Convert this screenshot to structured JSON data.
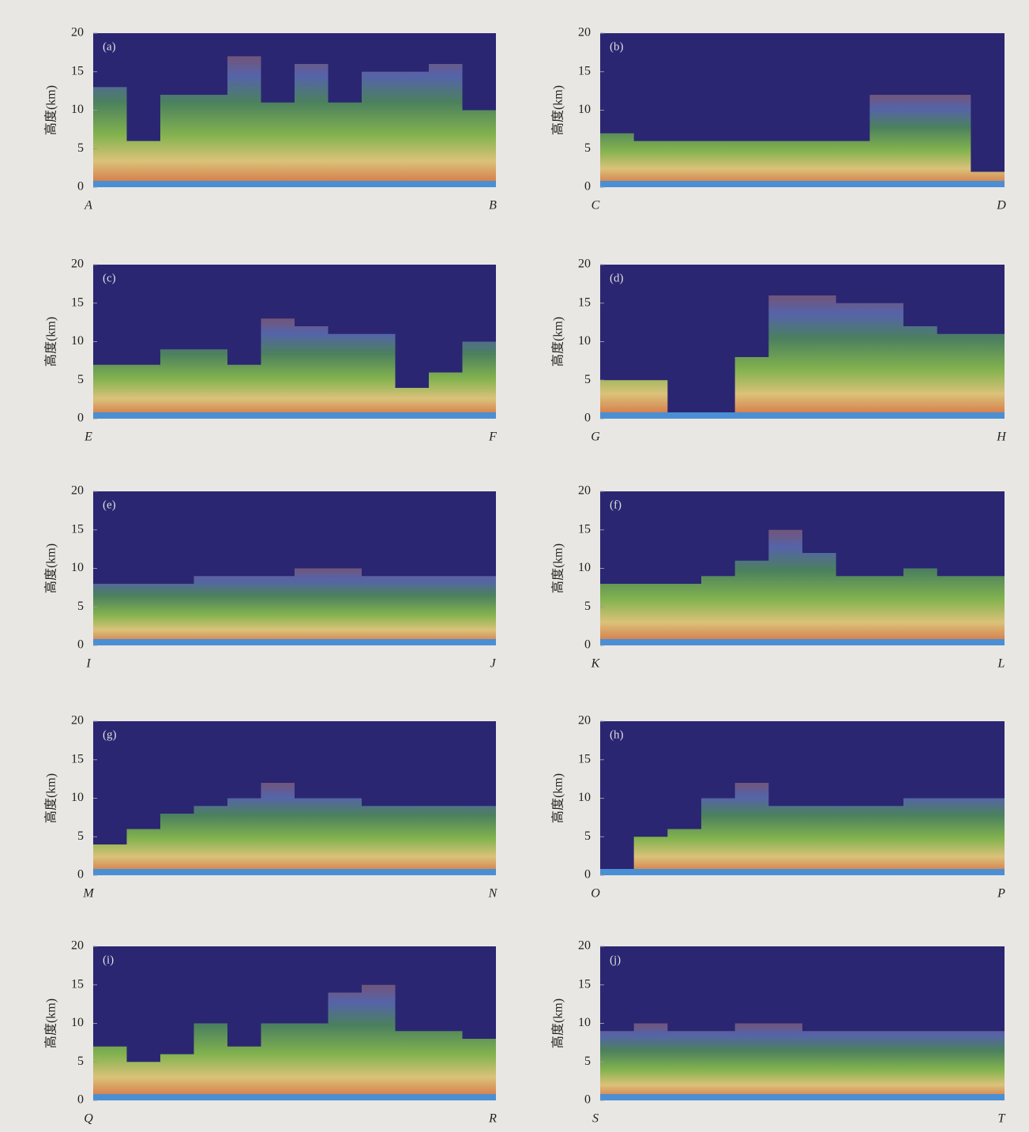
{
  "chart_data": [
    {
      "type": "area",
      "title": "(a)",
      "ylabel": "高度(km)",
      "x_labels": [
        "A",
        "B"
      ],
      "ylim": [
        0,
        20
      ],
      "yticks": [
        0,
        5,
        10,
        15,
        20
      ],
      "values": [
        13,
        6,
        12,
        12,
        17,
        11,
        16,
        11,
        15,
        15,
        16,
        10
      ]
    },
    {
      "type": "area",
      "title": "(b)",
      "ylabel": "高度(km)",
      "x_labels": [
        "C",
        "D"
      ],
      "ylim": [
        0,
        20
      ],
      "yticks": [
        0,
        5,
        10,
        15,
        20
      ],
      "values": [
        7,
        6,
        6,
        6,
        6,
        6,
        6,
        6,
        12,
        12,
        12,
        2
      ]
    },
    {
      "type": "area",
      "title": "(c)",
      "ylabel": "高度(km)",
      "x_labels": [
        "E",
        "F"
      ],
      "ylim": [
        0,
        20
      ],
      "yticks": [
        0,
        5,
        10,
        15,
        20
      ],
      "values": [
        7,
        7,
        9,
        9,
        7,
        13,
        12,
        11,
        11,
        4,
        6,
        10
      ]
    },
    {
      "type": "area",
      "title": "(d)",
      "ylabel": "高度(km)",
      "x_labels": [
        "G",
        "H"
      ],
      "ylim": [
        0,
        20
      ],
      "yticks": [
        0,
        5,
        10,
        15,
        20
      ],
      "values": [
        5,
        5,
        0,
        0,
        8,
        16,
        16,
        15,
        15,
        12,
        11,
        11
      ]
    },
    {
      "type": "area",
      "title": "(e)",
      "ylabel": "高度(km)",
      "x_labels": [
        "I",
        "J"
      ],
      "ylim": [
        0,
        20
      ],
      "yticks": [
        0,
        5,
        10,
        15,
        20
      ],
      "values": [
        8,
        8,
        8,
        9,
        9,
        9,
        10,
        10,
        9,
        9,
        9,
        9
      ]
    },
    {
      "type": "area",
      "title": "(f)",
      "ylabel": "高度(km)",
      "x_labels": [
        "K",
        "L"
      ],
      "ylim": [
        0,
        20
      ],
      "yticks": [
        0,
        5,
        10,
        15,
        20
      ],
      "values": [
        8,
        8,
        8,
        9,
        11,
        15,
        12,
        9,
        9,
        10,
        9,
        9
      ]
    },
    {
      "type": "area",
      "title": "(g)",
      "ylabel": "高度(km)",
      "x_labels": [
        "M",
        "N"
      ],
      "ylim": [
        0,
        20
      ],
      "yticks": [
        0,
        5,
        10,
        15,
        20
      ],
      "values": [
        4,
        6,
        8,
        9,
        10,
        12,
        10,
        10,
        9,
        9,
        9,
        9
      ]
    },
    {
      "type": "area",
      "title": "(h)",
      "ylabel": "高度(km)",
      "x_labels": [
        "O",
        "P"
      ],
      "ylim": [
        0,
        20
      ],
      "yticks": [
        0,
        5,
        10,
        15,
        20
      ],
      "values": [
        0,
        5,
        6,
        10,
        12,
        9,
        9,
        9,
        9,
        10,
        10,
        10
      ]
    },
    {
      "type": "area",
      "title": "(i)",
      "ylabel": "高度(km)",
      "x_labels": [
        "Q",
        "R"
      ],
      "ylim": [
        0,
        20
      ],
      "yticks": [
        0,
        5,
        10,
        15,
        20
      ],
      "values": [
        7,
        5,
        6,
        10,
        7,
        10,
        10,
        14,
        15,
        9,
        9,
        8
      ]
    },
    {
      "type": "area",
      "title": "(j)",
      "ylabel": "高度(km)",
      "x_labels": [
        "S",
        "T"
      ],
      "ylim": [
        0,
        20
      ],
      "yticks": [
        0,
        5,
        10,
        15,
        20
      ],
      "values": [
        9,
        10,
        9,
        9,
        10,
        10,
        9,
        9,
        9,
        9,
        9,
        9
      ]
    }
  ]
}
